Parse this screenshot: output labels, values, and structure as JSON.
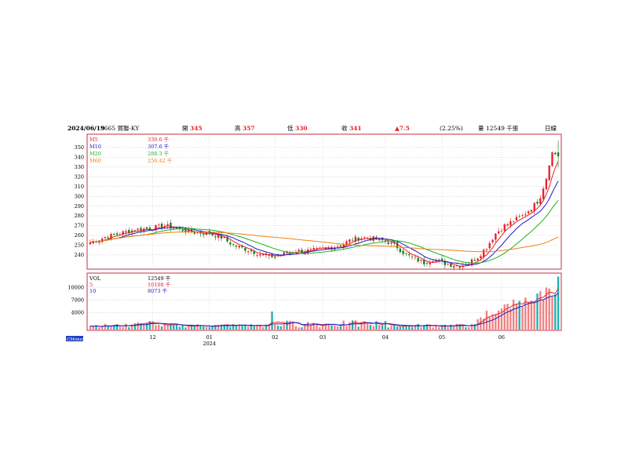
{
  "header": {
    "date": "2024/06/19",
    "stock": "3665 貿聯-KY",
    "open_label": "開",
    "open": "345",
    "high_label": "高",
    "high": "357",
    "low_label": "低",
    "low": "330",
    "close_label": "收",
    "close": "341",
    "change": "▲7.5",
    "change_pct": "(2.25%)",
    "volume_label": "量",
    "volume": "12549 千張",
    "period": "日線"
  },
  "colors": {
    "up": "#e8202a",
    "down": "#1a7a1a",
    "ma5": "#e8202a",
    "ma10": "#1c1cc8",
    "ma20": "#20b020",
    "ma60": "#f08010",
    "vol_up": "#f08080",
    "vol_down": "#20b0b0",
    "vol_ma5": "#e8202a",
    "vol_ma10": "#1c1cc8",
    "border": "#c03040",
    "grid": "#c0c0c0"
  },
  "brand": "CMoney",
  "chart_data": [
    {
      "type": "candlestick",
      "y_ticks": [
        240,
        250,
        260,
        270,
        280,
        290,
        300,
        310,
        320,
        330,
        340,
        350
      ],
      "ylim": [
        227,
        362
      ],
      "legend": [
        {
          "name": "M5",
          "value": "330.6 千",
          "color": "#e8202a"
        },
        {
          "name": "M10",
          "value": "307.6 千",
          "color": "#1c1cc8"
        },
        {
          "name": "M20",
          "value": "288.3 千",
          "color": "#20b020"
        },
        {
          "name": "M60",
          "value": "256.42 千",
          "color": "#f08010"
        }
      ],
      "x_ticks": [
        {
          "label": "12",
          "index": 21
        },
        {
          "label": "01",
          "sub": "2024",
          "index": 40
        },
        {
          "label": "02",
          "index": 62
        },
        {
          "label": "03",
          "index": 78
        },
        {
          "label": "04",
          "index": 99
        },
        {
          "label": "05",
          "index": 118
        },
        {
          "label": "06",
          "index": 138
        }
      ],
      "close_anchors": [
        [
          0,
          253
        ],
        [
          5,
          258
        ],
        [
          10,
          262
        ],
        [
          15,
          266
        ],
        [
          20,
          267
        ],
        [
          25,
          270
        ],
        [
          30,
          266
        ],
        [
          35,
          263
        ],
        [
          40,
          262
        ],
        [
          44,
          258
        ],
        [
          48,
          250
        ],
        [
          52,
          246
        ],
        [
          56,
          242
        ],
        [
          60,
          238
        ],
        [
          64,
          240
        ],
        [
          68,
          244
        ],
        [
          72,
          244
        ],
        [
          76,
          245
        ],
        [
          80,
          247
        ],
        [
          84,
          250
        ],
        [
          88,
          256
        ],
        [
          92,
          258
        ],
        [
          96,
          256
        ],
        [
          100,
          253
        ],
        [
          103,
          248
        ],
        [
          106,
          240
        ],
        [
          109,
          236
        ],
        [
          112,
          232
        ],
        [
          115,
          236
        ],
        [
          118,
          232
        ],
        [
          121,
          230
        ],
        [
          124,
          229
        ],
        [
          127,
          232
        ],
        [
          130,
          238
        ],
        [
          133,
          248
        ],
        [
          136,
          262
        ],
        [
          139,
          270
        ],
        [
          142,
          275
        ],
        [
          145,
          280
        ],
        [
          148,
          288
        ],
        [
          151,
          298
        ],
        [
          153,
          318
        ],
        [
          155,
          345
        ],
        [
          157,
          341
        ]
      ],
      "n_days": 158
    },
    {
      "type": "bar",
      "y_ticks": [
        4000,
        7000,
        10000
      ],
      "ylim": [
        0,
        13000
      ],
      "legend": [
        {
          "name": "VOL",
          "value": "12549 千"
        },
        {
          "name": "5",
          "value": "10108 千",
          "color": "#e8202a"
        },
        {
          "name": "10",
          "value": "8073 千",
          "color": "#1c1cc8"
        }
      ]
    }
  ]
}
